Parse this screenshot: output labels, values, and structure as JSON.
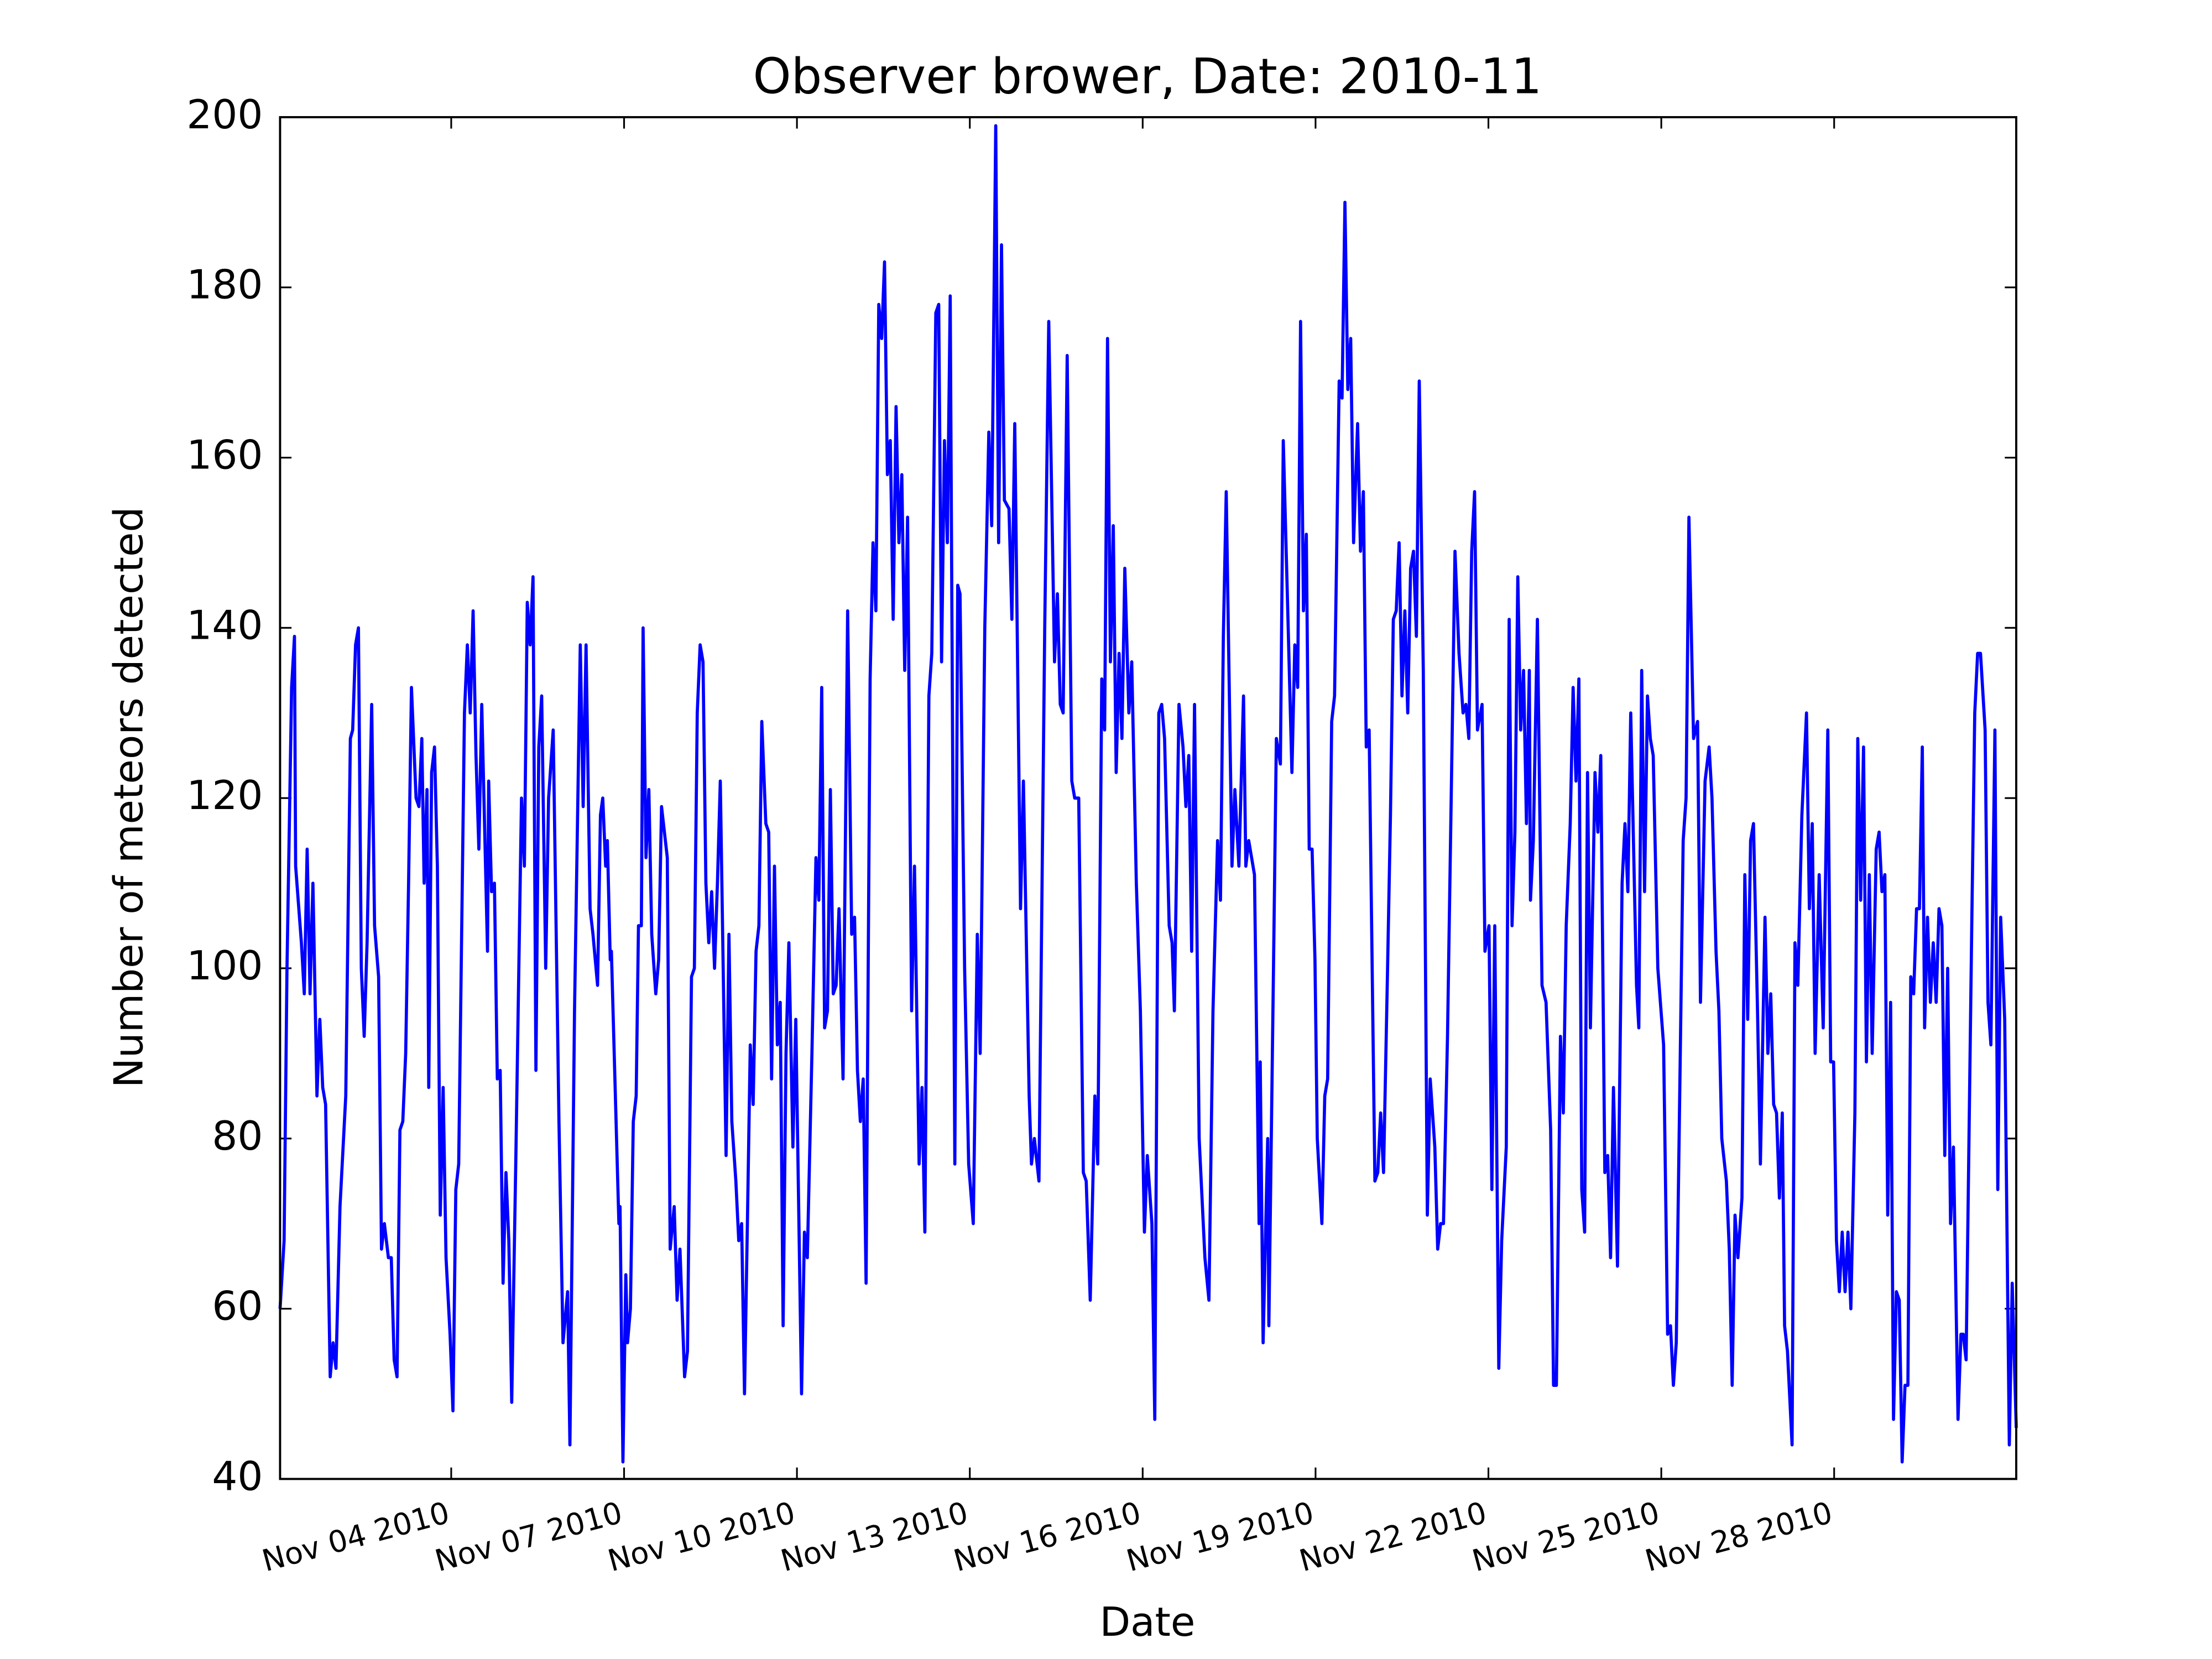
{
  "chart_data": {
    "type": "line",
    "title": "Observer brower, Date: 2010-11",
    "xlabel": "Date",
    "ylabel": "Number of meteors detected",
    "color": "#0000ff",
    "xlim": [
      1.03,
      31.16
    ],
    "ylim": [
      40,
      200
    ],
    "xticks": [
      {
        "value": 4,
        "label": "Nov 04 2010"
      },
      {
        "value": 7,
        "label": "Nov 07 2010"
      },
      {
        "value": 10,
        "label": "Nov 10 2010"
      },
      {
        "value": 13,
        "label": "Nov 13 2010"
      },
      {
        "value": 16,
        "label": "Nov 16 2010"
      },
      {
        "value": 19,
        "label": "Nov 19 2010"
      },
      {
        "value": 22,
        "label": "Nov 22 2010"
      },
      {
        "value": 25,
        "label": "Nov 25 2010"
      },
      {
        "value": 28,
        "label": "Nov 28 2010"
      }
    ],
    "yticks": [
      40,
      60,
      80,
      100,
      120,
      140,
      160,
      180,
      200
    ],
    "x": [
      1.03,
      1.1,
      1.15,
      1.23,
      1.28,
      1.3,
      1.4,
      1.45,
      1.5,
      1.55,
      1.6,
      1.67,
      1.72,
      1.77,
      1.82,
      1.9,
      1.95,
      2.0,
      2.07,
      2.17,
      2.25,
      2.29,
      2.34,
      2.39,
      2.44,
      2.49,
      2.54,
      2.62,
      2.67,
      2.74,
      2.79,
      2.84,
      2.91,
      2.96,
      3.01,
      3.06,
      3.11,
      3.16,
      3.21,
      3.26,
      3.31,
      3.39,
      3.44,
      3.49,
      3.53,
      3.58,
      3.61,
      3.66,
      3.71,
      3.76,
      3.81,
      3.86,
      3.91,
      3.98,
      4.03,
      4.08,
      4.13,
      4.23,
      4.28,
      4.33,
      4.38,
      4.43,
      4.48,
      4.53,
      4.63,
      4.65,
      4.7,
      4.75,
      4.8,
      4.85,
      4.9,
      4.95,
      5.0,
      5.05,
      5.12,
      5.22,
      5.27,
      5.32,
      5.37,
      5.42,
      5.47,
      5.52,
      5.57,
      5.64,
      5.69,
      5.77,
      5.87,
      5.94,
      6.02,
      6.06,
      6.14,
      6.24,
      6.29,
      6.34,
      6.41,
      6.46,
      6.54,
      6.59,
      6.63,
      6.68,
      6.71,
      6.76,
      6.78,
      6.91,
      6.93,
      6.98,
      7.03,
      7.06,
      7.11,
      7.16,
      7.21,
      7.25,
      7.3,
      7.33,
      7.38,
      7.43,
      7.48,
      7.55,
      7.6,
      7.65,
      7.75,
      7.8,
      7.87,
      7.92,
      7.97,
      8.05,
      8.1,
      8.17,
      8.22,
      8.27,
      8.32,
      8.37,
      8.42,
      8.47,
      8.52,
      8.57,
      8.62,
      8.67,
      8.72,
      8.77,
      8.82,
      8.87,
      8.94,
      8.99,
      9.04,
      9.09,
      9.14,
      9.19,
      9.24,
      9.29,
      9.34,
      9.39,
      9.46,
      9.51,
      9.56,
      9.61,
      9.66,
      9.71,
      9.76,
      9.81,
      9.86,
      9.93,
      9.98,
      10.08,
      10.13,
      10.18,
      10.26,
      10.33,
      10.38,
      10.43,
      10.48,
      10.53,
      10.58,
      10.63,
      10.68,
      10.73,
      10.8,
      10.88,
      10.95,
      11.0,
      11.05,
      11.1,
      11.15,
      11.2,
      11.27,
      11.32,
      11.37,
      11.42,
      11.47,
      11.52,
      11.57,
      11.62,
      11.67,
      11.72,
      11.77,
      11.82,
      11.87,
      11.92,
      11.99,
      12.04,
      12.12,
      12.17,
      12.22,
      12.29,
      12.34,
      12.41,
      12.46,
      12.51,
      12.56,
      12.61,
      12.66,
      12.74,
      12.79,
      12.83,
      12.91,
      12.98,
      13.06,
      13.13,
      13.18,
      13.26,
      13.33,
      13.38,
      13.45,
      13.5,
      13.55,
      13.6,
      13.68,
      13.73,
      13.78,
      13.88,
      13.93,
      14.03,
      14.07,
      14.12,
      14.2,
      14.3,
      14.37,
      14.47,
      14.52,
      14.57,
      14.62,
      14.69,
      14.77,
      14.82,
      14.89,
      14.97,
      15.02,
      15.09,
      15.17,
      15.22,
      15.29,
      15.34,
      15.39,
      15.44,
      15.49,
      15.54,
      15.59,
      15.64,
      15.69,
      15.76,
      15.81,
      15.89,
      15.96,
      16.03,
      16.08,
      16.16,
      16.21,
      16.28,
      16.33,
      16.38,
      16.46,
      16.51,
      16.55,
      16.63,
      16.7,
      16.75,
      16.8,
      16.85,
      16.9,
      16.98,
      17.08,
      17.15,
      17.22,
      17.3,
      17.35,
      17.4,
      17.45,
      17.55,
      17.6,
      17.67,
      17.75,
      17.79,
      17.84,
      17.94,
      18.02,
      18.04,
      18.09,
      18.17,
      18.19,
      18.27,
      18.32,
      18.39,
      18.44,
      18.51,
      18.59,
      18.64,
      18.69,
      18.74,
      18.79,
      18.84,
      18.89,
      18.94,
      18.99,
      19.03,
      19.11,
      19.16,
      19.21,
      19.28,
      19.33,
      19.41,
      19.46,
      19.51,
      19.56,
      19.61,
      19.66,
      19.73,
      19.78,
      19.83,
      19.88,
      19.93,
      20.03,
      20.08,
      20.13,
      20.18,
      20.25,
      20.3,
      20.35,
      20.4,
      20.45,
      20.5,
      20.55,
      20.6,
      20.65,
      20.7,
      20.75,
      20.8,
      20.87,
      20.94,
      20.99,
      21.07,
      21.12,
      21.17,
      21.22,
      21.29,
      21.37,
      21.42,
      21.49,
      21.56,
      21.61,
      21.66,
      21.71,
      21.76,
      21.81,
      21.89,
      21.94,
      22.01,
      22.06,
      22.11,
      22.18,
      22.23,
      22.31,
      22.36,
      22.41,
      22.46,
      22.51,
      22.56,
      22.61,
      22.66,
      22.71,
      22.73,
      22.78,
      22.85,
      22.93,
      23.0,
      23.08,
      23.13,
      23.18,
      23.25,
      23.3,
      23.35,
      23.42,
      23.47,
      23.52,
      23.57,
      23.62,
      23.67,
      23.72,
      23.77,
      23.85,
      23.9,
      23.95,
      24.02,
      24.07,
      24.12,
      24.17,
      24.24,
      24.32,
      24.37,
      24.42,
      24.47,
      24.57,
      24.61,
      24.66,
      24.71,
      24.76,
      24.81,
      24.86,
      24.94,
      25.04,
      25.11,
      25.16,
      25.21,
      25.26,
      25.33,
      25.38,
      25.43,
      25.48,
      25.56,
      25.63,
      25.68,
      25.76,
      25.83,
      25.88,
      25.95,
      26.0,
      26.05,
      26.13,
      26.18,
      26.23,
      26.28,
      26.33,
      26.4,
      26.45,
      26.5,
      26.55,
      26.6,
      26.67,
      26.72,
      26.8,
      26.85,
      26.9,
      26.95,
      27.0,
      27.05,
      27.1,
      27.14,
      27.19,
      27.27,
      27.32,
      27.37,
      27.44,
      27.52,
      27.57,
      27.62,
      27.67,
      27.74,
      27.81,
      27.89,
      27.94,
      27.99,
      28.04,
      28.09,
      28.14,
      28.19,
      28.24,
      28.29,
      28.36,
      28.41,
      28.46,
      28.51,
      28.56,
      28.61,
      28.66,
      28.73,
      28.78,
      28.83,
      28.88,
      28.93,
      28.98,
      29.03,
      29.08,
      29.13,
      29.18,
      29.23,
      29.28,
      29.33,
      29.38,
      29.43,
      29.48,
      29.53,
      29.57,
      29.62,
      29.67,
      29.72,
      29.77,
      29.82,
      29.87,
      29.92,
      29.97,
      30.02,
      30.07,
      30.15,
      30.2,
      30.24,
      30.29,
      30.39,
      30.44,
      30.49,
      30.54,
      30.62,
      30.67,
      30.72,
      30.79,
      30.84,
      30.89,
      30.96,
      31.04,
      31.09,
      31.16
    ],
    "values": [
      60,
      68,
      100,
      133,
      139,
      112,
      103,
      97,
      114,
      97,
      110,
      85,
      94,
      86,
      84,
      52,
      56,
      53,
      72,
      85,
      127,
      128,
      138,
      140,
      100,
      92,
      103,
      131,
      105,
      99,
      67,
      70,
      66,
      66,
      54,
      52,
      81,
      82,
      90,
      110,
      133,
      120,
      119,
      127,
      110,
      121,
      86,
      123,
      126,
      112,
      71,
      86,
      66,
      57,
      48,
      74,
      77,
      130,
      138,
      130,
      142,
      125,
      114,
      131,
      102,
      122,
      109,
      110,
      87,
      88,
      63,
      76,
      68,
      49,
      77,
      120,
      112,
      143,
      138,
      146,
      88,
      126,
      132,
      100,
      120,
      128,
      82,
      56,
      62,
      44,
      95,
      138,
      119,
      138,
      107,
      104,
      98,
      118,
      120,
      112,
      115,
      101,
      102,
      70,
      72,
      42,
      64,
      56,
      60,
      82,
      85,
      105,
      105,
      140,
      113,
      121,
      104,
      97,
      101,
      119,
      113,
      67,
      72,
      61,
      67,
      52,
      55,
      99,
      100,
      130,
      138,
      136,
      110,
      103,
      109,
      100,
      110,
      122,
      100,
      78,
      104,
      82,
      75,
      68,
      70,
      50,
      70,
      91,
      84,
      102,
      105,
      129,
      117,
      116,
      87,
      112,
      91,
      96,
      58,
      90,
      103,
      79,
      94,
      50,
      69,
      66,
      90,
      113,
      108,
      133,
      93,
      95,
      121,
      97,
      98,
      107,
      87,
      142,
      104,
      106,
      88,
      82,
      87,
      63,
      134,
      150,
      142,
      178,
      174,
      183,
      158,
      162,
      141,
      166,
      150,
      158,
      135,
      153,
      95,
      112,
      77,
      86,
      69,
      132,
      137,
      177,
      178,
      136,
      162,
      150,
      179,
      77,
      145,
      144,
      100,
      77,
      70,
      104,
      90,
      140,
      163,
      152,
      199,
      150,
      185,
      155,
      154,
      141,
      164,
      107,
      122,
      85,
      77,
      80,
      75,
      140,
      176,
      136,
      144,
      131,
      130,
      172,
      122,
      120,
      120,
      76,
      75,
      61,
      85,
      77,
      134,
      128,
      174,
      136,
      152,
      123,
      137,
      127,
      147,
      130,
      136,
      110,
      95,
      69,
      78,
      70,
      47,
      130,
      131,
      127,
      105,
      103,
      95,
      131,
      126,
      119,
      125,
      102,
      131,
      80,
      66,
      61,
      95,
      115,
      108,
      139,
      156,
      112,
      121,
      112,
      132,
      112,
      115,
      111,
      70,
      89,
      56,
      80,
      58,
      100,
      127,
      124,
      162,
      144,
      123,
      138,
      133,
      176,
      142,
      151,
      114,
      114,
      101,
      80,
      70,
      85,
      87,
      129,
      132,
      169,
      167,
      190,
      168,
      174,
      150,
      164,
      149,
      156,
      126,
      128,
      75,
      76,
      83,
      76,
      100,
      118,
      141,
      142,
      150,
      132,
      142,
      130,
      147,
      149,
      139,
      169,
      135,
      71,
      87,
      79,
      67,
      70,
      70,
      92,
      127,
      149,
      137,
      130,
      131,
      127,
      149,
      156,
      128,
      131,
      102,
      105,
      74,
      105,
      53,
      68,
      79,
      141,
      105,
      116,
      146,
      128,
      135,
      117,
      135,
      108,
      115,
      141,
      98,
      96,
      81,
      51,
      51,
      92,
      83,
      105,
      117,
      133,
      122,
      134,
      74,
      69,
      123,
      93,
      123,
      116,
      125,
      76,
      78,
      66,
      86,
      65,
      110,
      117,
      109,
      130,
      98,
      93,
      135,
      109,
      132,
      127,
      125,
      100,
      91,
      57,
      58,
      51,
      56,
      90,
      115,
      120,
      153,
      127,
      129,
      96,
      122,
      126,
      120,
      102,
      95,
      80,
      75,
      67,
      51,
      71,
      66,
      73,
      111,
      94,
      115,
      117,
      95,
      77,
      106,
      90,
      97,
      84,
      83,
      73,
      83,
      58,
      55,
      44,
      103,
      98,
      118,
      130,
      107,
      117,
      90,
      111,
      93,
      128,
      89,
      89,
      68,
      62,
      69,
      62,
      69,
      60,
      83,
      127,
      108,
      126,
      89,
      111,
      90,
      114,
      116,
      109,
      111,
      71,
      96,
      47,
      62,
      61,
      42,
      51,
      51,
      99,
      97,
      107,
      107,
      126,
      93,
      106,
      96,
      103,
      96,
      107,
      105,
      78,
      100,
      70,
      79,
      47,
      57,
      57,
      54,
      106,
      130,
      137,
      137,
      128,
      96,
      91,
      128,
      74,
      106,
      94,
      44,
      63,
      46
    ]
  }
}
